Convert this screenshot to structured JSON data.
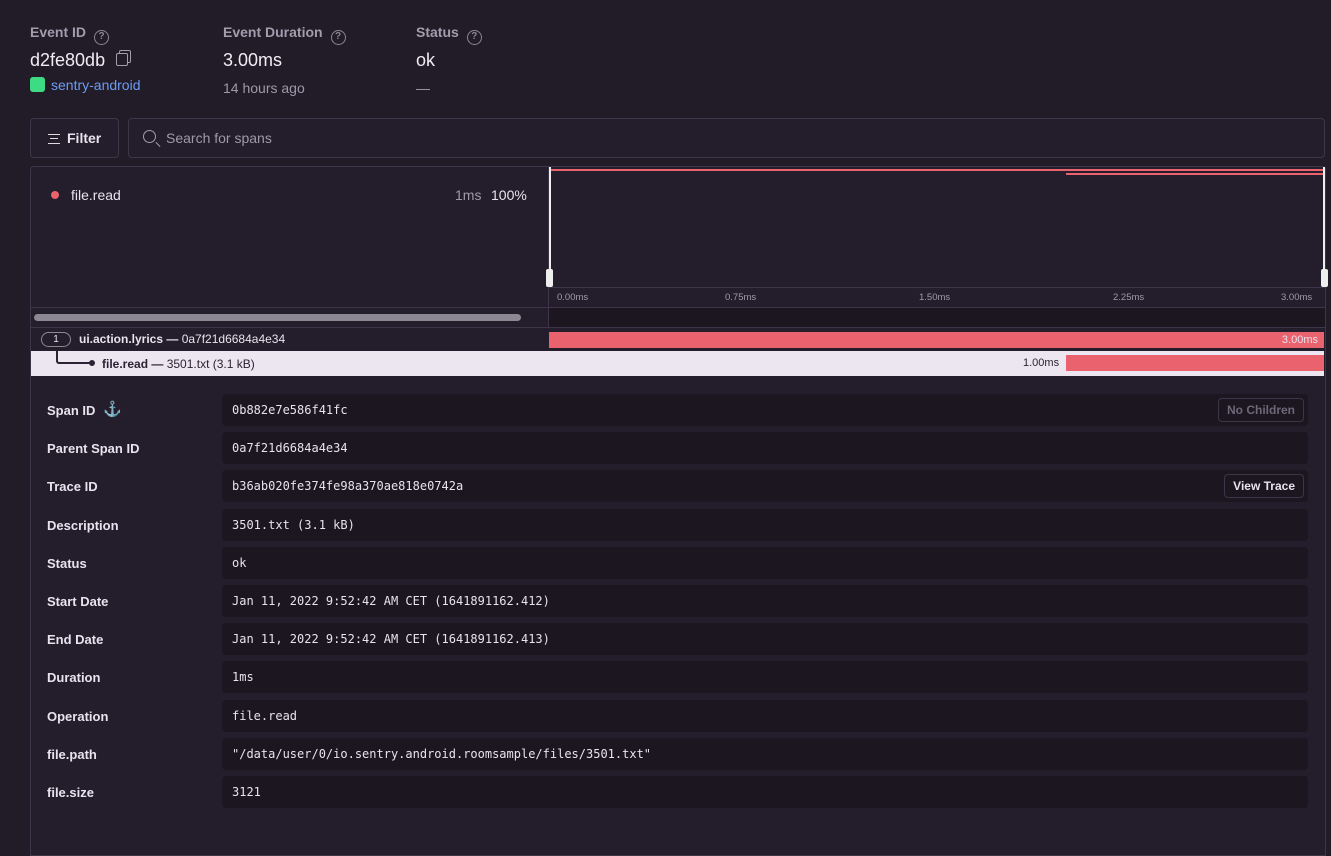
{
  "header": {
    "event_id": {
      "label": "Event ID",
      "value": "d2fe80db",
      "project": "sentry-android"
    },
    "duration": {
      "label": "Event Duration",
      "value": "3.00ms",
      "ago": "14 hours ago"
    },
    "status": {
      "label": "Status",
      "value": "ok",
      "sub": "—"
    }
  },
  "toolbar": {
    "filter_label": "Filter",
    "search_placeholder": "Search for spans"
  },
  "ops": [
    {
      "name": "file.read",
      "duration": "1ms",
      "percent": "100%",
      "color": "#e9626e"
    }
  ],
  "axis": {
    "ticks": [
      "0.00ms",
      "0.75ms",
      "1.50ms",
      "2.25ms",
      "3.00ms"
    ]
  },
  "spans": [
    {
      "count": "1",
      "op": "ui.action.lyrics",
      "sep": " — ",
      "desc": "0a7f21d6684a4e34",
      "duration": "3.00ms",
      "start_ms": 0,
      "end_ms": 3
    },
    {
      "op": "file.read",
      "sep": " — ",
      "desc": "3501.txt (3.1 kB)",
      "duration": "1.00ms",
      "start_ms": 2,
      "end_ms": 3
    }
  ],
  "details": [
    {
      "label": "Span ID",
      "value": "0b882e7e586f41fc",
      "button": "No Children"
    },
    {
      "label": "Parent Span ID",
      "value": "0a7f21d6684a4e34"
    },
    {
      "label": "Trace ID",
      "value": "b36ab020fe374fe98a370ae818e0742a",
      "button": "View Trace"
    },
    {
      "label": "Description",
      "value": "3501.txt (3.1 kB)"
    },
    {
      "label": "Status",
      "value": "ok"
    },
    {
      "label": "Start Date",
      "value": "Jan 11, 2022 9:52:42 AM CET (1641891162.412)"
    },
    {
      "label": "End Date",
      "value": "Jan 11, 2022 9:52:42 AM CET (1641891162.413)"
    },
    {
      "label": "Duration",
      "value": "1ms"
    },
    {
      "label": "Operation",
      "value": "file.read"
    },
    {
      "label": "file.path",
      "value": "\"/data/user/0/io.sentry.android.roomsample/files/3501.txt\""
    },
    {
      "label": "file.size",
      "value": "3121"
    }
  ],
  "colors": {
    "accent": "#e9626e",
    "link": "#6c9cf0",
    "android": "#3ddc84"
  }
}
